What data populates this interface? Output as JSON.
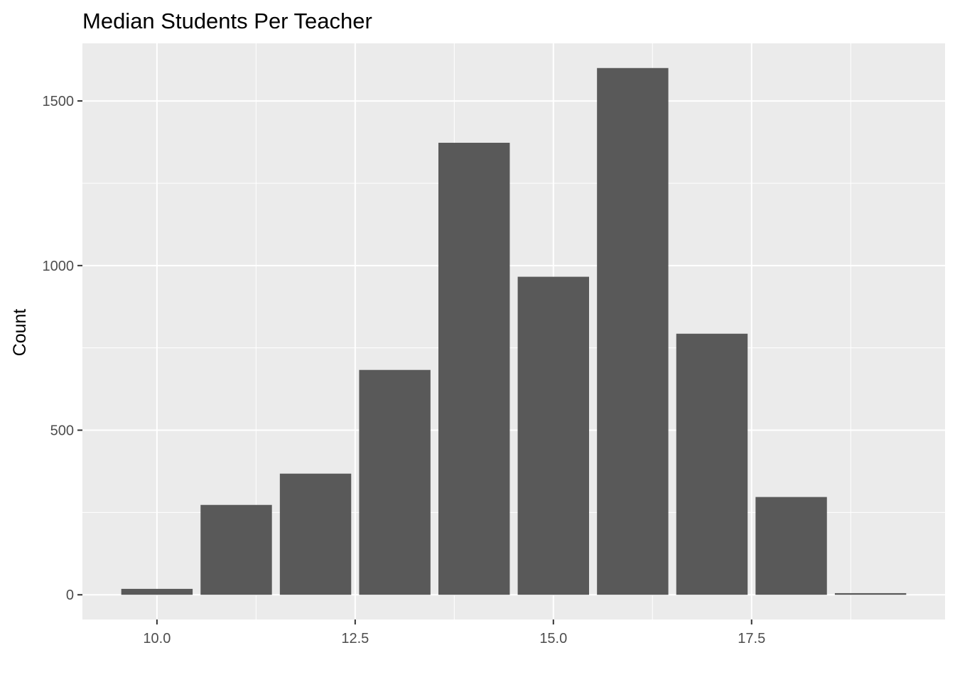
{
  "chart_data": {
    "type": "bar",
    "title": "Median Students Per Teacher",
    "xlabel": "",
    "ylabel": "Count",
    "x": [
      10,
      11,
      12,
      13,
      14,
      15,
      16,
      17,
      18,
      19
    ],
    "values": [
      18,
      273,
      368,
      683,
      1373,
      966,
      1600,
      793,
      297,
      5
    ],
    "bar_width": 0.9,
    "xlim": [
      9.06,
      19.94
    ],
    "ylim": [
      -75,
      1675
    ],
    "x_ticks": [
      10,
      12.5,
      15,
      17.5
    ],
    "x_tick_labels": [
      "10.0",
      "12.5",
      "15.0",
      "17.5"
    ],
    "y_ticks": [
      0,
      500,
      1000,
      1500
    ],
    "y_tick_labels": [
      "0",
      "500",
      "1000",
      "1500"
    ],
    "grid": true,
    "legend": "none",
    "colors": {
      "panel": "#ebebeb",
      "grid": "#ffffff",
      "bar": "#595959",
      "tick": "#333333",
      "text": "#4d4d4d"
    }
  }
}
